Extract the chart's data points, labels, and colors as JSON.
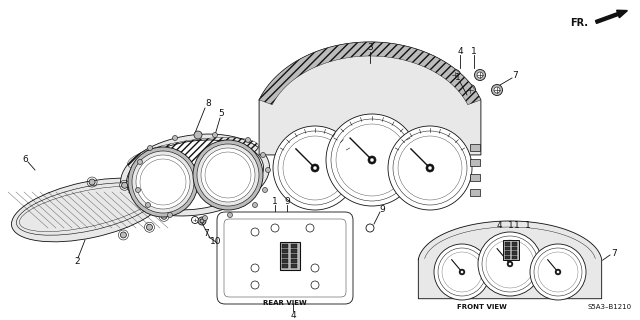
{
  "background_color": "#ffffff",
  "fig_width": 6.4,
  "fig_height": 3.2,
  "dpi": 100,
  "diagram_code": "S5A3–B1210",
  "fr_label": "FR.",
  "rear_view_label": "REAR VIEW",
  "front_view_label": "FRONT VIEW",
  "line_color": "#111111",
  "line_width": 0.6,
  "label_fontsize": 6.0
}
